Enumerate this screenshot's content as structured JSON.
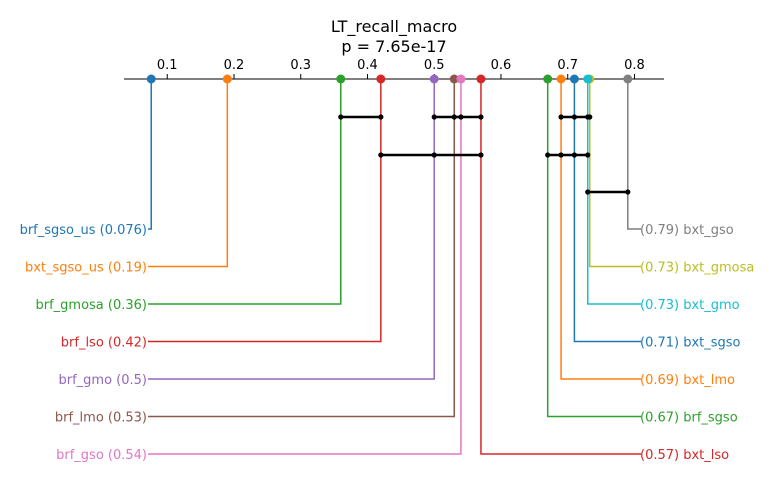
{
  "chart_data": {
    "type": "critical-difference",
    "title": "LT_recall_macro",
    "subtitle": "p = 7.65e-17",
    "xlim": [
      0.006,
      0.836
    ],
    "ticks": [
      {
        "v": 0.1,
        "label": "0.1"
      },
      {
        "v": 0.2,
        "label": "0.2"
      },
      {
        "v": 0.3,
        "label": "0.3"
      },
      {
        "v": 0.4,
        "label": "0.4"
      },
      {
        "v": 0.5,
        "label": "0.5"
      },
      {
        "v": 0.6,
        "label": "0.6"
      },
      {
        "v": 0.7,
        "label": "0.7"
      },
      {
        "v": 0.8,
        "label": "0.8"
      }
    ],
    "left_methods": [
      {
        "name": "brf_sgso_us",
        "value": 0.076,
        "label": "brf_sgso_us (0.076)",
        "color": "#1f77b4"
      },
      {
        "name": "bxt_sgso_us",
        "value": 0.19,
        "label": "bxt_sgso_us (0.19)",
        "color": "#ff7f0e"
      },
      {
        "name": "brf_gmosa",
        "value": 0.36,
        "label": "brf_gmosa (0.36)",
        "color": "#2ca02c"
      },
      {
        "name": "brf_lso",
        "value": 0.42,
        "label": "brf_lso (0.42)",
        "color": "#d62728"
      },
      {
        "name": "brf_gmo",
        "value": 0.5,
        "label": "brf_gmo (0.5)",
        "color": "#9467bd"
      },
      {
        "name": "brf_lmo",
        "value": 0.53,
        "label": "brf_lmo (0.53)",
        "color": "#8c564b"
      },
      {
        "name": "brf_gso",
        "value": 0.54,
        "label": "brf_gso (0.54)",
        "color": "#e377c2"
      }
    ],
    "right_methods": [
      {
        "name": "bxt_gso",
        "value": 0.79,
        "label": "(0.79) bxt_gso",
        "color": "#7f7f7f"
      },
      {
        "name": "bxt_gmosa",
        "value": 0.733,
        "label": "(0.73) bxt_gmosa",
        "color": "#bcbd22"
      },
      {
        "name": "bxt_gmo",
        "value": 0.73,
        "label": "(0.73) bxt_gmo",
        "color": "#17becf"
      },
      {
        "name": "bxt_sgso",
        "value": 0.71,
        "label": "(0.71) bxt_sgso",
        "color": "#1f77b4"
      },
      {
        "name": "bxt_lmo",
        "value": 0.69,
        "label": "(0.69) bxt_lmo",
        "color": "#ff7f0e"
      },
      {
        "name": "brf_sgso",
        "value": 0.67,
        "label": "(0.67) brf_sgso",
        "color": "#2ca02c"
      },
      {
        "name": "bxt_lso",
        "value": 0.57,
        "label": "(0.57) bxt_lso",
        "color": "#d62728"
      }
    ],
    "cliques": [
      {
        "from": 0.36,
        "to": 0.42,
        "points": [
          0.36,
          0.42
        ]
      },
      {
        "from": 0.5,
        "to": 0.57,
        "points": [
          0.5,
          0.53,
          0.54,
          0.57
        ]
      },
      {
        "from": 0.69,
        "to": 0.733,
        "points": [
          0.69,
          0.71,
          0.73,
          0.733
        ]
      },
      {
        "from": 0.42,
        "to": 0.57,
        "points": [
          0.42,
          0.5,
          0.57
        ]
      },
      {
        "from": 0.67,
        "to": 0.73,
        "points": [
          0.67,
          0.69,
          0.71,
          0.73
        ]
      },
      {
        "from": 0.73,
        "to": 0.79,
        "points": [
          0.73,
          0.79
        ]
      }
    ]
  }
}
